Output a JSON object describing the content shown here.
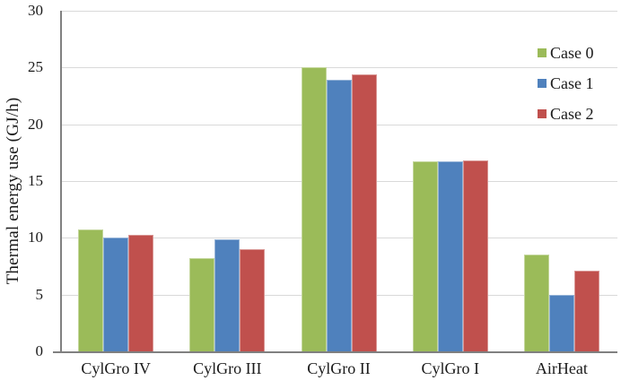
{
  "chart_data": {
    "type": "bar",
    "title": "",
    "xlabel": "",
    "ylabel": "Thermal energy use (GJ/h)",
    "categories": [
      "CylGro IV",
      "CylGro III",
      "CylGro II",
      "CylGro I",
      "AirHeat"
    ],
    "series": [
      {
        "name": "Case 0",
        "color": "#9BBB59",
        "border_color": "#C3D69B",
        "values": [
          10.7,
          8.2,
          25.0,
          16.7,
          8.5
        ]
      },
      {
        "name": "Case 1",
        "color": "#4F81BD",
        "border_color": "#95B3D7",
        "values": [
          10.0,
          9.9,
          23.9,
          16.7,
          5.0
        ]
      },
      {
        "name": "Case 2",
        "color": "#C0504D",
        "border_color": "#D99694",
        "values": [
          10.3,
          9.0,
          24.4,
          16.8,
          7.1
        ]
      }
    ],
    "ylim": [
      0,
      30
    ],
    "yticks": [
      0,
      5,
      10,
      15,
      20,
      25,
      30
    ],
    "grid": true,
    "legend_position": "top-right",
    "gridline_color": "#D9D9D9",
    "axis_color": "#808080",
    "text_color": "#1A1A1A"
  }
}
